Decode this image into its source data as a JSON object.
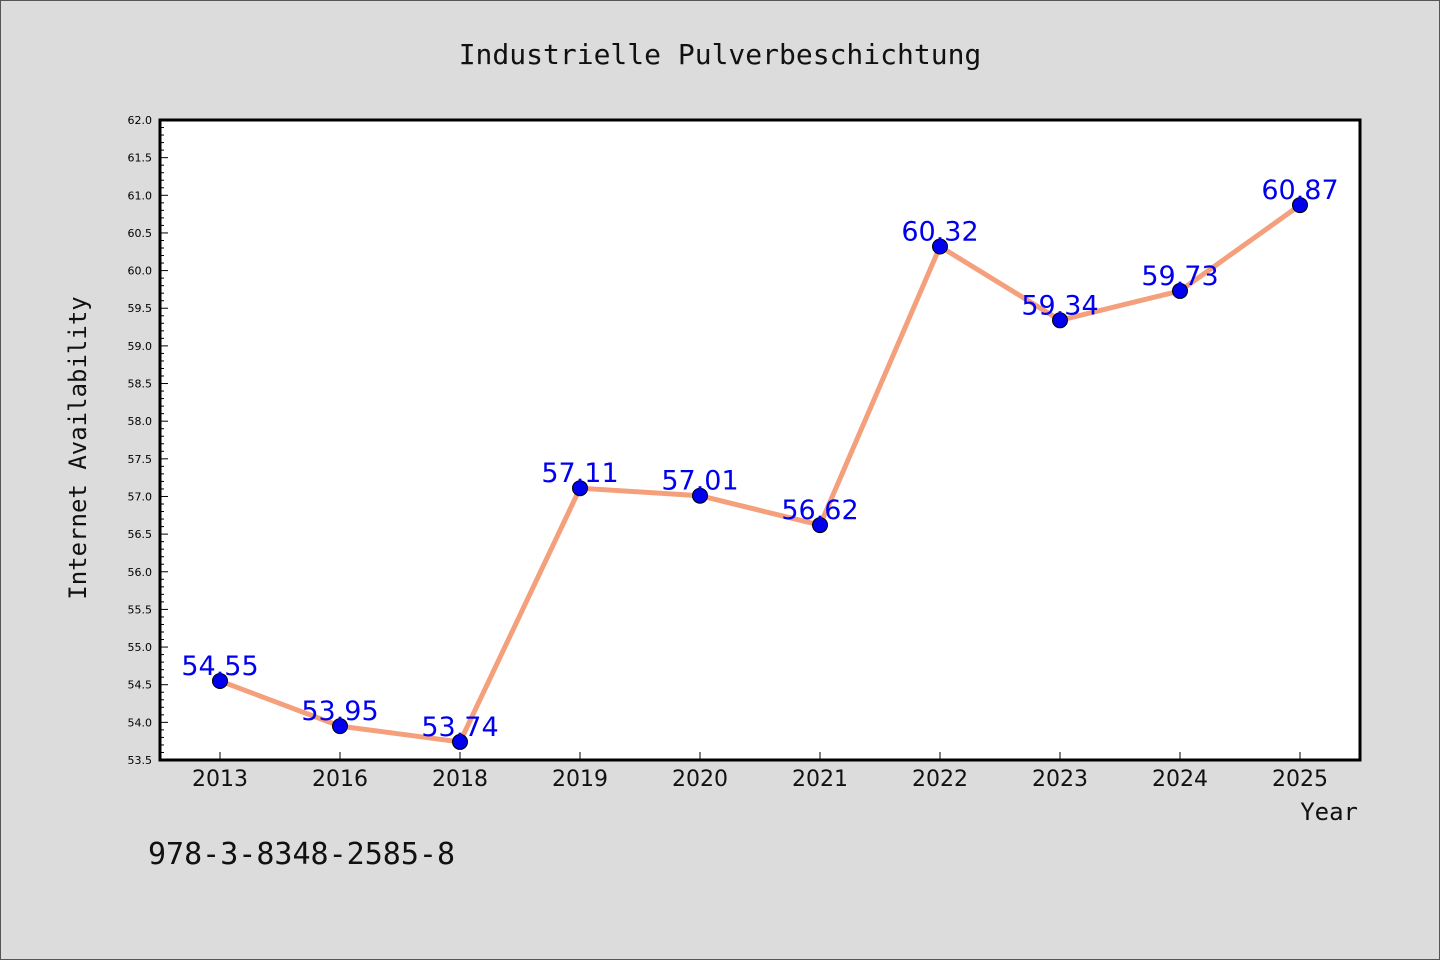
{
  "chart_data": {
    "type": "line",
    "title": "Industrielle Pulverbeschichtung",
    "xlabel": "Year",
    "ylabel": "Internet Availability",
    "categories": [
      "2013",
      "2016",
      "2018",
      "2019",
      "2020",
      "2021",
      "2022",
      "2023",
      "2024",
      "2025"
    ],
    "series": [
      {
        "values": [
          54.55,
          53.95,
          53.74,
          57.11,
          57.01,
          56.62,
          60.32,
          59.34,
          59.73,
          60.87
        ],
        "line_color": "#f4a07c",
        "marker_color": "#0000ee"
      }
    ],
    "data_labels": [
      "54.55",
      "53.95",
      "53.74",
      "57.11",
      "57.01",
      "56.62",
      "60.32",
      "59.34",
      "59.73",
      "60.87"
    ],
    "ylim": [
      53.5,
      62.0
    ],
    "y_ticks": [
      "53.5",
      "54.0",
      "54.5",
      "55.0",
      "55.5",
      "56.0",
      "56.5",
      "57.0",
      "57.5",
      "58.0",
      "58.5",
      "59.0",
      "59.5",
      "60.0",
      "60.5",
      "61.0",
      "61.5",
      "62.0"
    ],
    "grid": false,
    "label_color": "#0000ee"
  },
  "footer": {
    "isbn": "978-3-8348-2585-8"
  }
}
